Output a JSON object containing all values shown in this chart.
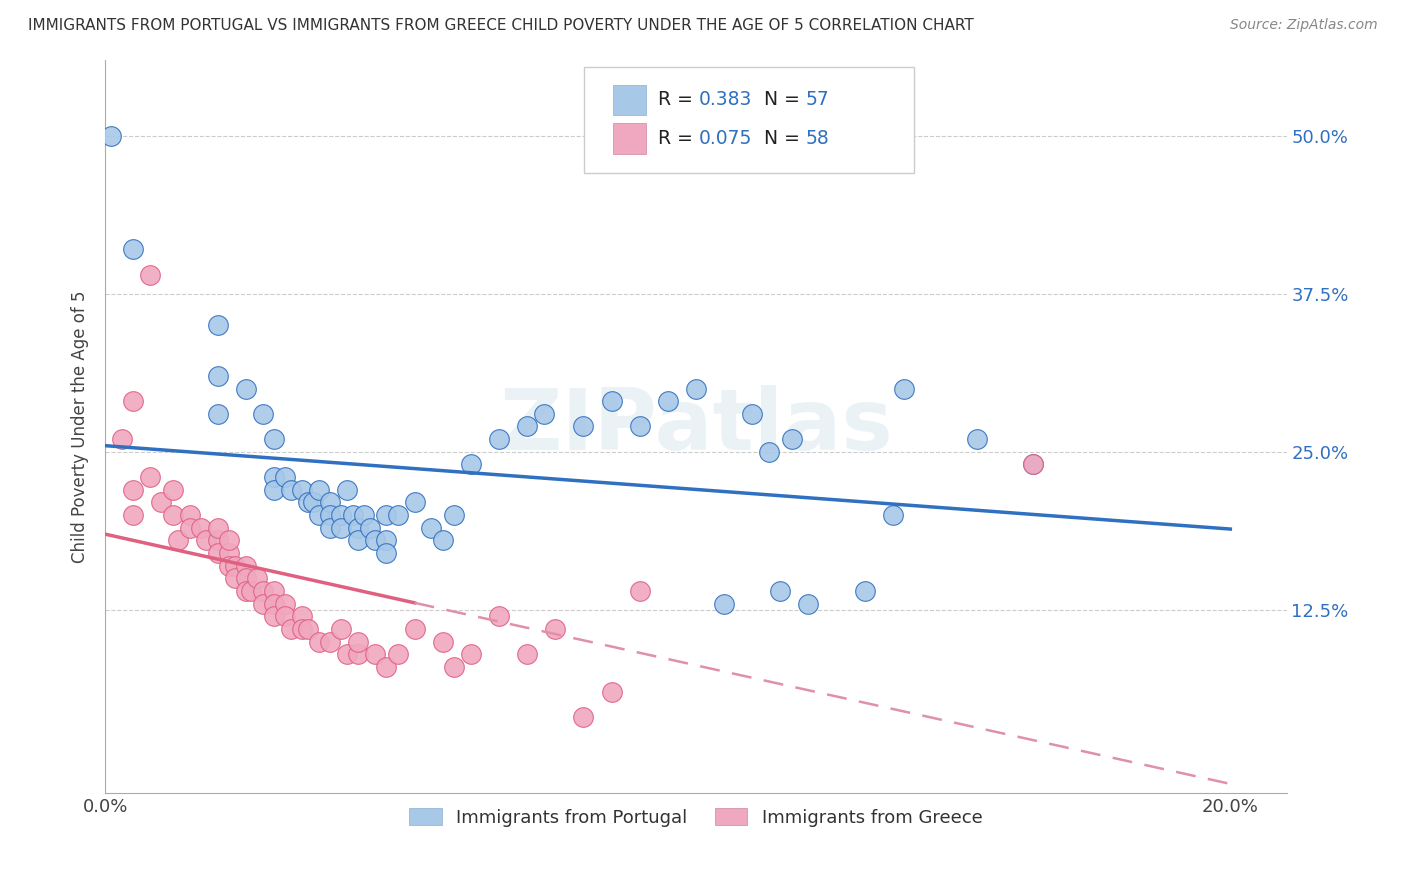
{
  "title": "IMMIGRANTS FROM PORTUGAL VS IMMIGRANTS FROM GREECE CHILD POVERTY UNDER THE AGE OF 5 CORRELATION CHART",
  "source": "Source: ZipAtlas.com",
  "ylabel": "Child Poverty Under the Age of 5",
  "x_tick_positions": [
    0.0,
    0.05,
    0.1,
    0.15,
    0.2
  ],
  "x_tick_labels": [
    "0.0%",
    "",
    "",
    "",
    "20.0%"
  ],
  "y_tick_positions": [
    0.125,
    0.25,
    0.375,
    0.5
  ],
  "y_tick_labels": [
    "12.5%",
    "25.0%",
    "37.5%",
    "50.0%"
  ],
  "xlim": [
    0.0,
    0.21
  ],
  "ylim": [
    -0.02,
    0.56
  ],
  "legend_labels_bottom": [
    "Immigrants from Portugal",
    "Immigrants from Greece"
  ],
  "portugal_color": "#a8c8e8",
  "greece_color": "#f0a8c0",
  "portugal_line_color": "#3070c0",
  "greece_solid_color": "#e06080",
  "greece_dashed_color": "#e090a8",
  "watermark": "ZIPatlas",
  "portugal_points": [
    [
      0.001,
      0.5
    ],
    [
      0.005,
      0.41
    ],
    [
      0.02,
      0.35
    ],
    [
      0.02,
      0.31
    ],
    [
      0.02,
      0.28
    ],
    [
      0.025,
      0.3
    ],
    [
      0.028,
      0.28
    ],
    [
      0.03,
      0.26
    ],
    [
      0.03,
      0.23
    ],
    [
      0.03,
      0.22
    ],
    [
      0.032,
      0.23
    ],
    [
      0.033,
      0.22
    ],
    [
      0.035,
      0.22
    ],
    [
      0.036,
      0.21
    ],
    [
      0.037,
      0.21
    ],
    [
      0.038,
      0.2
    ],
    [
      0.038,
      0.22
    ],
    [
      0.04,
      0.21
    ],
    [
      0.04,
      0.2
    ],
    [
      0.04,
      0.19
    ],
    [
      0.042,
      0.2
    ],
    [
      0.042,
      0.19
    ],
    [
      0.043,
      0.22
    ],
    [
      0.044,
      0.2
    ],
    [
      0.045,
      0.19
    ],
    [
      0.045,
      0.18
    ],
    [
      0.046,
      0.2
    ],
    [
      0.047,
      0.19
    ],
    [
      0.048,
      0.18
    ],
    [
      0.05,
      0.2
    ],
    [
      0.05,
      0.18
    ],
    [
      0.05,
      0.17
    ],
    [
      0.052,
      0.2
    ],
    [
      0.055,
      0.21
    ],
    [
      0.058,
      0.19
    ],
    [
      0.06,
      0.18
    ],
    [
      0.062,
      0.2
    ],
    [
      0.065,
      0.24
    ],
    [
      0.07,
      0.26
    ],
    [
      0.075,
      0.27
    ],
    [
      0.078,
      0.28
    ],
    [
      0.085,
      0.27
    ],
    [
      0.09,
      0.29
    ],
    [
      0.095,
      0.27
    ],
    [
      0.1,
      0.29
    ],
    [
      0.105,
      0.3
    ],
    [
      0.11,
      0.13
    ],
    [
      0.115,
      0.28
    ],
    [
      0.118,
      0.25
    ],
    [
      0.12,
      0.14
    ],
    [
      0.122,
      0.26
    ],
    [
      0.125,
      0.13
    ],
    [
      0.135,
      0.14
    ],
    [
      0.14,
      0.2
    ],
    [
      0.142,
      0.3
    ],
    [
      0.155,
      0.26
    ],
    [
      0.165,
      0.24
    ]
  ],
  "greece_points": [
    [
      0.003,
      0.26
    ],
    [
      0.005,
      0.29
    ],
    [
      0.005,
      0.22
    ],
    [
      0.005,
      0.2
    ],
    [
      0.008,
      0.39
    ],
    [
      0.008,
      0.23
    ],
    [
      0.01,
      0.21
    ],
    [
      0.012,
      0.22
    ],
    [
      0.012,
      0.2
    ],
    [
      0.013,
      0.18
    ],
    [
      0.015,
      0.2
    ],
    [
      0.015,
      0.19
    ],
    [
      0.017,
      0.19
    ],
    [
      0.018,
      0.18
    ],
    [
      0.02,
      0.18
    ],
    [
      0.02,
      0.17
    ],
    [
      0.02,
      0.19
    ],
    [
      0.022,
      0.17
    ],
    [
      0.022,
      0.16
    ],
    [
      0.022,
      0.18
    ],
    [
      0.023,
      0.16
    ],
    [
      0.023,
      0.15
    ],
    [
      0.025,
      0.16
    ],
    [
      0.025,
      0.15
    ],
    [
      0.025,
      0.14
    ],
    [
      0.026,
      0.14
    ],
    [
      0.027,
      0.15
    ],
    [
      0.028,
      0.14
    ],
    [
      0.028,
      0.13
    ],
    [
      0.03,
      0.14
    ],
    [
      0.03,
      0.13
    ],
    [
      0.03,
      0.12
    ],
    [
      0.032,
      0.13
    ],
    [
      0.032,
      0.12
    ],
    [
      0.033,
      0.11
    ],
    [
      0.035,
      0.12
    ],
    [
      0.035,
      0.11
    ],
    [
      0.036,
      0.11
    ],
    [
      0.038,
      0.1
    ],
    [
      0.04,
      0.1
    ],
    [
      0.042,
      0.11
    ],
    [
      0.043,
      0.09
    ],
    [
      0.045,
      0.09
    ],
    [
      0.045,
      0.1
    ],
    [
      0.048,
      0.09
    ],
    [
      0.05,
      0.08
    ],
    [
      0.052,
      0.09
    ],
    [
      0.055,
      0.11
    ],
    [
      0.06,
      0.1
    ],
    [
      0.062,
      0.08
    ],
    [
      0.065,
      0.09
    ],
    [
      0.07,
      0.12
    ],
    [
      0.075,
      0.09
    ],
    [
      0.08,
      0.11
    ],
    [
      0.085,
      0.04
    ],
    [
      0.09,
      0.06
    ],
    [
      0.095,
      0.14
    ],
    [
      0.165,
      0.24
    ]
  ]
}
